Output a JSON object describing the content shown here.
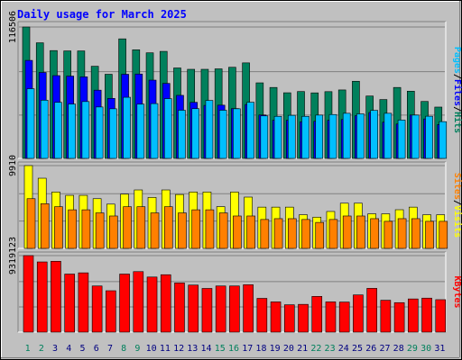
{
  "chart_data": {
    "type": "bar",
    "title": "Daily usage for March 2025",
    "categories": [
      "1",
      "2",
      "3",
      "4",
      "5",
      "6",
      "7",
      "8",
      "9",
      "10",
      "11",
      "12",
      "13",
      "14",
      "15",
      "16",
      "17",
      "18",
      "19",
      "20",
      "21",
      "22",
      "23",
      "24",
      "25",
      "26",
      "27",
      "28",
      "29",
      "30",
      "31"
    ],
    "weekend_days": [
      "1",
      "2",
      "8",
      "9",
      "15",
      "16",
      "22",
      "23",
      "29",
      "30"
    ],
    "panels": [
      {
        "id": "hits-files-pages",
        "max_label": "116506",
        "ylim": [
          0,
          116506
        ],
        "series": [
          {
            "name": "Hits",
            "color": "#00805c",
            "values": [
              116506,
              102500,
              95600,
              95300,
              95300,
              81700,
              74600,
              106000,
              96300,
              93600,
              94900,
              80200,
              79000,
              79000,
              79400,
              80800,
              84700,
              67000,
              62900,
              58200,
              59300,
              58100,
              59200,
              60700,
              68400,
              55300,
              52200,
              62900,
              59600,
              50500,
              45500
            ]
          },
          {
            "name": "Files",
            "color": "#0000ff",
            "values": [
              86900,
              76200,
              73400,
              73000,
              72300,
              60500,
              53200,
              74600,
              74800,
              69400,
              66500,
              55900,
              49700,
              47000,
              47200,
              44200,
              47800,
              38500,
              33800,
              33800,
              32500,
              32900,
              33800,
              34500,
              37900,
              40700,
              32100,
              30500,
              38500,
              35000,
              30000
            ]
          },
          {
            "name": "Pages",
            "color": "#00bfff",
            "values": [
              61800,
              51600,
              49700,
              48200,
              50400,
              45600,
              44000,
              54200,
              48100,
              48600,
              53000,
              42700,
              44100,
              51400,
              42700,
              44000,
              49800,
              37700,
              37300,
              38200,
              37300,
              38400,
              38900,
              40000,
              39500,
              42600,
              40000,
              34000,
              38400,
              37400,
              32600
            ]
          }
        ]
      },
      {
        "id": "visits-sites",
        "max_label": "9910",
        "ylim": [
          0,
          9910
        ],
        "series": [
          {
            "name": "Visits",
            "color": "#ffff00",
            "values": [
              9910,
              8400,
              6750,
              6350,
              6350,
              5950,
              5300,
              6500,
              7000,
              6100,
              7000,
              6450,
              6750,
              6750,
              5000,
              6750,
              6140,
              4940,
              4940,
              4940,
              4030,
              3740,
              4420,
              5410,
              5410,
              4140,
              4140,
              4630,
              4940,
              4030,
              4030
            ]
          },
          {
            "name": "Sites",
            "color": "#ff8000",
            "values": [
              5950,
              5350,
              4990,
              4620,
              4620,
              4250,
              3880,
              4990,
              4990,
              4250,
              4990,
              4250,
              4620,
              4620,
              4250,
              3880,
              3880,
              3460,
              3560,
              3560,
              3460,
              3110,
              3460,
              3880,
              3880,
              3560,
              3240,
              3560,
              3560,
              3240,
              3240
            ]
          }
        ]
      },
      {
        "id": "kbytes",
        "max_label": "9319123",
        "ylim": [
          0,
          9319123
        ],
        "series": [
          {
            "name": "KBytes",
            "color": "#ff0000",
            "values": [
              9319123,
              8550000,
              8630000,
              7070000,
              7220000,
              5620000,
              5040000,
              7070000,
              7370000,
              6710000,
              6990000,
              5990000,
              5730000,
              5320000,
              5620000,
              5620000,
              5770000,
              4110000,
              3680000,
              3330000,
              3380000,
              4350000,
              3680000,
              3660000,
              4530000,
              5330000,
              3880000,
              3590000,
              4040000,
              4140000,
              3950000
            ]
          }
        ]
      }
    ],
    "right_labels": [
      {
        "panel": "hits-files-pages",
        "parts": [
          {
            "text": "Pages",
            "color": "#00bfff"
          },
          {
            "text": "/",
            "color": "#000000"
          },
          {
            "text": "Files",
            "color": "#0000ff"
          },
          {
            "text": "/",
            "color": "#000000"
          },
          {
            "text": "Hits",
            "color": "#00805c"
          }
        ]
      },
      {
        "panel": "visits-sites",
        "parts": [
          {
            "text": "Sites",
            "color": "#ff8000"
          },
          {
            "text": "/",
            "color": "#000000"
          },
          {
            "text": "Visits",
            "color": "#ffff00"
          }
        ]
      },
      {
        "panel": "kbytes",
        "parts": [
          {
            "text": "KBytes",
            "color": "#ff0000"
          }
        ]
      }
    ],
    "colors": {
      "background": "#c0c0c0",
      "title": "#0000ff",
      "weekday_label": "#000080",
      "weekend_label": "#00805c",
      "gridline": "#808080"
    },
    "grid": true,
    "legend": "right"
  }
}
